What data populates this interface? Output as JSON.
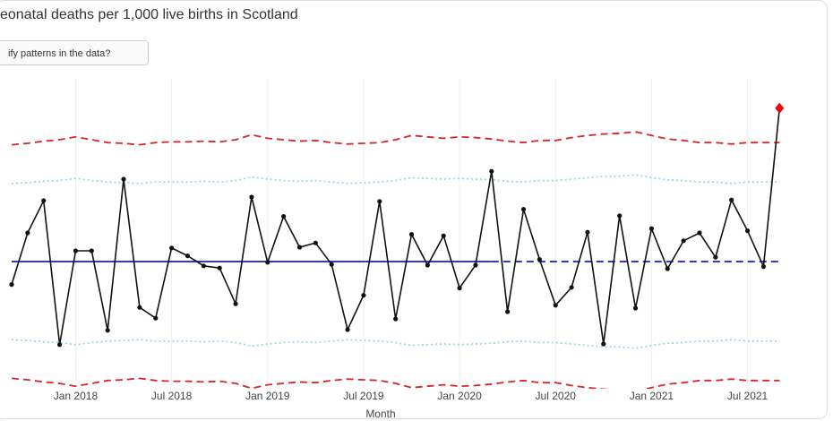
{
  "chart_data": {
    "type": "line",
    "title": "eonatal deaths per 1,000 live births in Scotland",
    "button": "ify patterns in the data?",
    "xlabel": "Month",
    "x": [
      "2017-09",
      "2017-10",
      "2017-11",
      "2017-12",
      "2018-01",
      "2018-02",
      "2018-03",
      "2018-04",
      "2018-05",
      "2018-06",
      "2018-07",
      "2018-08",
      "2018-09",
      "2018-10",
      "2018-11",
      "2018-12",
      "2019-01",
      "2019-02",
      "2019-03",
      "2019-04",
      "2019-05",
      "2019-06",
      "2019-07",
      "2019-08",
      "2019-09",
      "2019-10",
      "2019-11",
      "2019-12",
      "2020-01",
      "2020-02",
      "2020-03",
      "2020-04",
      "2020-05",
      "2020-06",
      "2020-07",
      "2020-08",
      "2020-09",
      "2020-10",
      "2020-11",
      "2020-12",
      "2021-01",
      "2021-02",
      "2021-03",
      "2021-04",
      "2021-05",
      "2021-06",
      "2021-07",
      "2021-08",
      "2021-09"
    ],
    "xlim": [
      "2017-09",
      "2021-11"
    ],
    "xticks": [
      {
        "value": "2018-01",
        "label": "Jan 2018"
      },
      {
        "value": "2018-07",
        "label": "Jul 2018"
      },
      {
        "value": "2019-01",
        "label": "Jan 2019"
      },
      {
        "value": "2019-07",
        "label": "Jul 2019"
      },
      {
        "value": "2020-01",
        "label": "Jan 2020"
      },
      {
        "value": "2020-07",
        "label": "Jul 2020"
      },
      {
        "value": "2021-01",
        "label": "Jan 2021"
      },
      {
        "value": "2021-07",
        "label": "Jul 2021"
      }
    ],
    "ylim": [
      0.25,
      4.5
    ],
    "grid": true,
    "series": [
      {
        "color": "#d62728",
        "style": "dashed",
        "values": [
          3.63,
          3.65,
          3.68,
          3.7,
          3.74,
          3.7,
          3.66,
          3.65,
          3.63,
          3.66,
          3.67,
          3.67,
          3.68,
          3.67,
          3.7,
          3.77,
          3.72,
          3.7,
          3.68,
          3.69,
          3.66,
          3.64,
          3.65,
          3.66,
          3.7,
          3.76,
          3.74,
          3.72,
          3.74,
          3.73,
          3.71,
          3.68,
          3.66,
          3.69,
          3.69,
          3.73,
          3.76,
          3.78,
          3.79,
          3.81,
          3.76,
          3.71,
          3.69,
          3.66,
          3.66,
          3.64,
          3.66,
          3.66,
          3.66
        ]
      },
      {
        "color": "#9fd3e6",
        "style": "dotted",
        "values": [
          3.09,
          3.1,
          3.12,
          3.13,
          3.16,
          3.13,
          3.11,
          3.1,
          3.09,
          3.11,
          3.11,
          3.11,
          3.12,
          3.11,
          3.13,
          3.18,
          3.15,
          3.13,
          3.12,
          3.13,
          3.11,
          3.09,
          3.1,
          3.11,
          3.13,
          3.17,
          3.16,
          3.15,
          3.16,
          3.15,
          3.14,
          3.12,
          3.11,
          3.13,
          3.13,
          3.15,
          3.17,
          3.19,
          3.19,
          3.21,
          3.17,
          3.14,
          3.13,
          3.11,
          3.11,
          3.09,
          3.11,
          3.11,
          3.11
        ]
      },
      {
        "color": "#9fd3e6",
        "style": "dotted",
        "values": [
          0.91,
          0.9,
          0.88,
          0.87,
          0.84,
          0.87,
          0.89,
          0.9,
          0.91,
          0.89,
          0.89,
          0.89,
          0.88,
          0.89,
          0.87,
          0.82,
          0.85,
          0.87,
          0.88,
          0.87,
          0.89,
          0.91,
          0.9,
          0.89,
          0.87,
          0.83,
          0.84,
          0.85,
          0.84,
          0.85,
          0.86,
          0.88,
          0.89,
          0.87,
          0.87,
          0.85,
          0.83,
          0.81,
          0.81,
          0.79,
          0.83,
          0.86,
          0.87,
          0.89,
          0.89,
          0.91,
          0.89,
          0.89,
          0.89
        ]
      },
      {
        "color": "#d62728",
        "style": "dashed",
        "values": [
          0.37,
          0.35,
          0.32,
          0.3,
          0.26,
          0.3,
          0.34,
          0.35,
          0.37,
          0.34,
          0.33,
          0.33,
          0.32,
          0.33,
          0.3,
          0.23,
          0.28,
          0.3,
          0.32,
          0.31,
          0.34,
          0.36,
          0.35,
          0.34,
          0.3,
          0.24,
          0.26,
          0.28,
          0.26,
          0.27,
          0.29,
          0.32,
          0.34,
          0.31,
          0.31,
          0.27,
          0.24,
          0.22,
          0.21,
          0.19,
          0.24,
          0.29,
          0.31,
          0.34,
          0.34,
          0.36,
          0.34,
          0.34,
          0.34
        ]
      },
      {
        "color": "#1a1ad0",
        "style": "solid",
        "values": [
          2.0,
          2.0,
          2.0,
          2.0,
          2.0,
          2.0,
          2.0,
          2.0,
          2.0,
          2.0,
          2.0,
          2.0,
          2.0,
          2.0,
          2.0,
          2.0,
          2.0,
          2.0,
          2.0,
          2.0,
          2.0,
          2.0,
          2.0,
          2.0,
          2.0,
          2.0,
          2.0,
          2.0,
          2.0,
          2.0,
          2.0,
          null,
          null,
          null,
          null,
          null,
          null,
          null,
          null,
          null,
          null,
          null,
          null,
          null,
          null,
          null,
          null,
          null,
          null
        ]
      },
      {
        "color": "#1a1ad0",
        "style": "dashed",
        "values": [
          null,
          null,
          null,
          null,
          null,
          null,
          null,
          null,
          null,
          null,
          null,
          null,
          null,
          null,
          null,
          null,
          null,
          null,
          null,
          null,
          null,
          null,
          null,
          null,
          null,
          null,
          null,
          null,
          null,
          null,
          2.0,
          2.0,
          2.0,
          2.0,
          2.0,
          2.0,
          2.0,
          2.0,
          2.0,
          2.0,
          2.0,
          2.0,
          2.0,
          2.0,
          2.0,
          2.0,
          2.0,
          2.0,
          2.0
        ]
      },
      {
        "color": "#111111",
        "style": "solid",
        "markers": true,
        "special_points": [
          48
        ],
        "special_color": "#e8000b",
        "values": [
          1.68,
          2.4,
          2.85,
          0.84,
          2.15,
          2.15,
          1.04,
          3.15,
          1.36,
          1.21,
          2.19,
          2.08,
          1.94,
          1.91,
          1.41,
          2.9,
          1.99,
          2.63,
          2.2,
          2.26,
          1.96,
          1.05,
          1.53,
          2.84,
          1.2,
          2.38,
          1.95,
          2.36,
          1.63,
          1.95,
          3.26,
          1.3,
          2.73,
          2.03,
          1.39,
          1.64,
          2.41,
          0.85,
          2.64,
          1.35,
          2.46,
          1.9,
          2.29,
          2.4,
          2.06,
          2.86,
          2.43,
          1.93,
          4.14
        ]
      }
    ]
  }
}
